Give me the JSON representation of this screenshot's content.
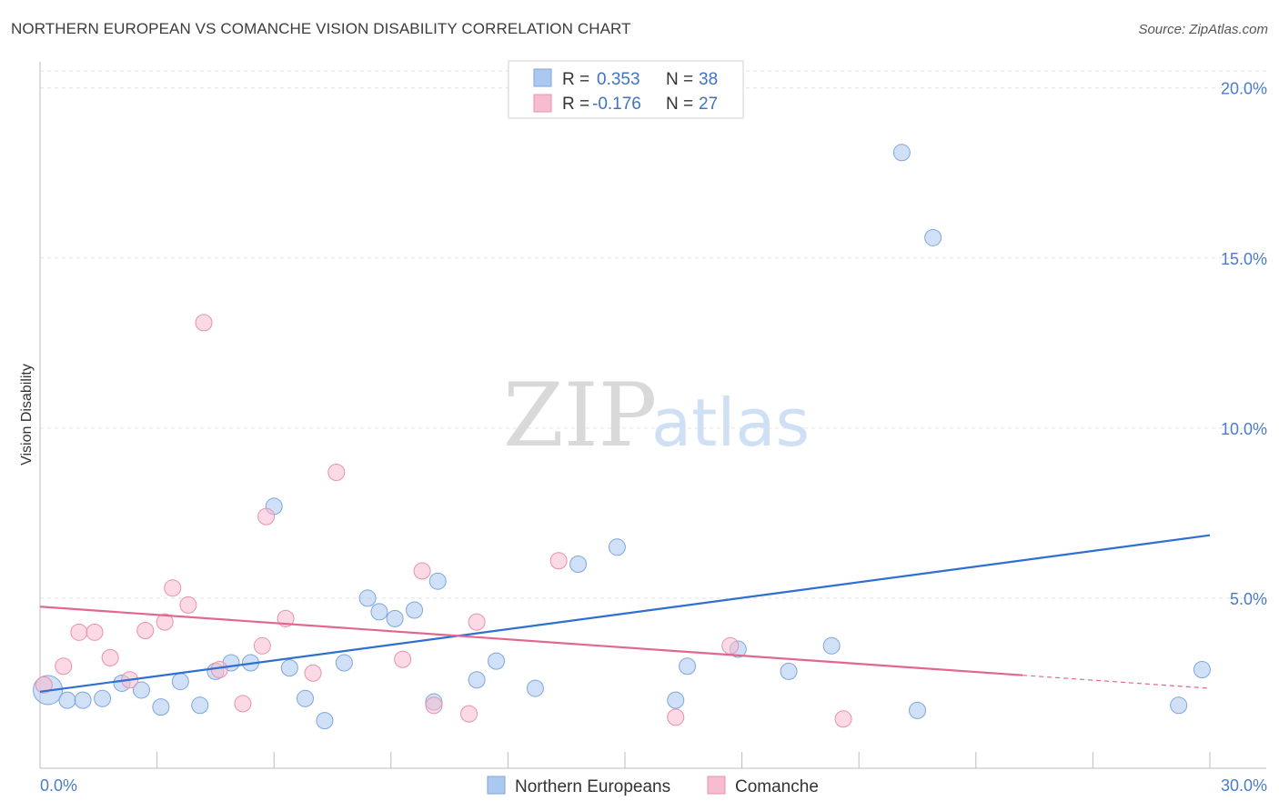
{
  "title": "NORTHERN EUROPEAN VS COMANCHE VISION DISABILITY CORRELATION CHART",
  "source": "Source: ZipAtlas.com",
  "watermark": {
    "zip": "ZIP",
    "atlas": "atlas"
  },
  "legend": {
    "rows": [
      {
        "r_label": "R =",
        "r_value": "0.353",
        "n_label": "N =",
        "n_value": "38",
        "color": "#aac8f0"
      },
      {
        "r_label": "R =",
        "r_value": "-0.176",
        "n_label": "N =",
        "n_value": "27",
        "color": "#f8bcd0"
      }
    ]
  },
  "bottom_legend": [
    {
      "label": "Northern Europeans",
      "color": "#aac8f0"
    },
    {
      "label": "Comanche",
      "color": "#f8bcd0"
    }
  ],
  "chart_data": {
    "type": "scatter",
    "title": "NORTHERN EUROPEAN VS COMANCHE VISION DISABILITY CORRELATION CHART",
    "xlabel": "",
    "ylabel": "Vision Disability",
    "xlim": [
      0,
      30
    ],
    "ylim": [
      0,
      20.5
    ],
    "x_tick_labels": [
      {
        "v": 0,
        "label": "0.0%"
      },
      {
        "v": 30,
        "label": "30.0%"
      }
    ],
    "y_tick_labels": [
      {
        "v": 5,
        "label": "5.0%"
      },
      {
        "v": 10,
        "label": "10.0%"
      },
      {
        "v": 15,
        "label": "15.0%"
      },
      {
        "v": 20,
        "label": "20.0%"
      }
    ],
    "grid": true,
    "legend_position": "top-center",
    "series": [
      {
        "name": "Northern Europeans",
        "color": "#aac8f0",
        "stroke": "#7ea6dc",
        "trend_color": "#2f6fcf",
        "trend": {
          "x0": 0,
          "y0": 2.25,
          "x1": 30,
          "y1": 6.85,
          "dash_from": null
        },
        "points": [
          [
            0.2,
            2.3,
            16
          ],
          [
            0.7,
            2.0,
            9
          ],
          [
            1.1,
            2.0,
            9
          ],
          [
            1.6,
            2.05,
            9
          ],
          [
            2.1,
            2.5,
            9
          ],
          [
            2.6,
            2.3,
            9
          ],
          [
            3.1,
            1.8,
            9
          ],
          [
            3.6,
            2.55,
            9
          ],
          [
            4.1,
            1.85,
            9
          ],
          [
            4.5,
            2.85,
            9
          ],
          [
            4.9,
            3.1,
            9
          ],
          [
            5.4,
            3.1,
            9
          ],
          [
            6.0,
            7.7,
            9
          ],
          [
            6.4,
            2.95,
            9
          ],
          [
            6.8,
            2.05,
            9
          ],
          [
            7.3,
            1.4,
            9
          ],
          [
            7.8,
            3.1,
            9
          ],
          [
            8.4,
            5.0,
            9
          ],
          [
            8.7,
            4.6,
            9
          ],
          [
            9.1,
            4.4,
            9
          ],
          [
            9.6,
            4.65,
            9
          ],
          [
            10.1,
            1.95,
            9
          ],
          [
            10.2,
            5.5,
            9
          ],
          [
            11.2,
            2.6,
            9
          ],
          [
            11.7,
            3.15,
            9
          ],
          [
            12.7,
            2.35,
            9
          ],
          [
            13.8,
            6.0,
            9
          ],
          [
            14.8,
            6.5,
            9
          ],
          [
            16.3,
            2.0,
            9
          ],
          [
            16.6,
            3.0,
            9
          ],
          [
            17.9,
            3.5,
            9
          ],
          [
            19.2,
            2.85,
            9
          ],
          [
            20.3,
            3.6,
            9
          ],
          [
            22.1,
            18.1,
            9
          ],
          [
            22.5,
            1.7,
            9
          ],
          [
            22.9,
            15.6,
            9
          ],
          [
            29.2,
            1.85,
            9
          ],
          [
            29.8,
            2.9,
            9
          ]
        ]
      },
      {
        "name": "Comanche",
        "color": "#f8bcd0",
        "stroke": "#e891ae",
        "trend_color": "#e06890",
        "trend": {
          "x0": 0,
          "y0": 4.75,
          "x1": 30,
          "y1": 2.35,
          "dash_from": 25.2
        },
        "points": [
          [
            0.1,
            2.45,
            9
          ],
          [
            0.6,
            3.0,
            9
          ],
          [
            1.0,
            4.0,
            9
          ],
          [
            1.4,
            4.0,
            9
          ],
          [
            1.8,
            3.25,
            9
          ],
          [
            2.3,
            2.6,
            9
          ],
          [
            2.7,
            4.05,
            9
          ],
          [
            3.2,
            4.3,
            9
          ],
          [
            3.4,
            5.3,
            9
          ],
          [
            3.8,
            4.8,
            9
          ],
          [
            4.2,
            13.1,
            9
          ],
          [
            4.6,
            2.9,
            9
          ],
          [
            5.2,
            1.9,
            9
          ],
          [
            5.7,
            3.6,
            9
          ],
          [
            5.8,
            7.4,
            9
          ],
          [
            6.3,
            4.4,
            9
          ],
          [
            7.0,
            2.8,
            9
          ],
          [
            7.6,
            8.7,
            9
          ],
          [
            9.3,
            3.2,
            9
          ],
          [
            9.8,
            5.8,
            9
          ],
          [
            10.1,
            1.85,
            9
          ],
          [
            11.0,
            1.6,
            9
          ],
          [
            11.2,
            4.3,
            9
          ],
          [
            13.3,
            6.1,
            9
          ],
          [
            16.3,
            1.5,
            9
          ],
          [
            17.7,
            3.6,
            9
          ],
          [
            20.6,
            1.45,
            9
          ]
        ]
      }
    ]
  }
}
